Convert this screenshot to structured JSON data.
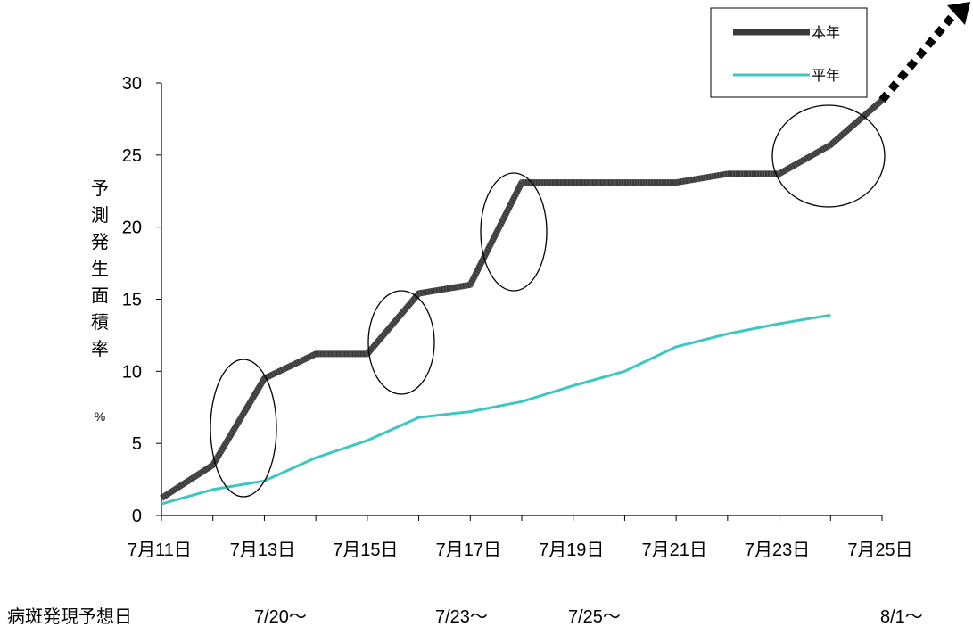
{
  "chart_data": {
    "type": "line",
    "x": [
      "7月11日",
      "7月12日",
      "7月13日",
      "7月14日",
      "7月15日",
      "7月16日",
      "7月17日",
      "7月18日",
      "7月19日",
      "7月20日",
      "7月21日",
      "7月22日",
      "7月23日",
      "7月24日",
      "7月25日"
    ],
    "x_tick_labels": [
      "7月11日",
      "7月13日",
      "7月15日",
      "7月17日",
      "7月19日",
      "7月21日",
      "7月23日",
      "7月25日"
    ],
    "series": [
      {
        "name": "本年",
        "color": "#3a3a3a",
        "values": [
          1.2,
          3.5,
          9.5,
          11.2,
          11.2,
          15.4,
          16.0,
          23.1,
          23.1,
          23.1,
          23.1,
          23.7,
          23.7,
          25.7,
          28.8
        ]
      },
      {
        "name": "平年",
        "color": "#3cc7c3",
        "values": [
          0.8,
          1.8,
          2.4,
          4.0,
          5.2,
          6.8,
          7.2,
          7.9,
          9.0,
          10.0,
          11.7,
          12.6,
          13.3,
          13.9,
          null
        ]
      }
    ],
    "ylim": [
      0,
      30
    ],
    "yticks": [
      0,
      5,
      10,
      15,
      20,
      25,
      30
    ],
    "ylabel": "予測発生面積率",
    "yunit": "%",
    "legend": {
      "position": "top-right"
    },
    "grid": false
  },
  "bottom_row": {
    "label": "病斑発現予想日",
    "dates": [
      "7/20～",
      "7/23～",
      "7/25～",
      "8/1～"
    ]
  }
}
